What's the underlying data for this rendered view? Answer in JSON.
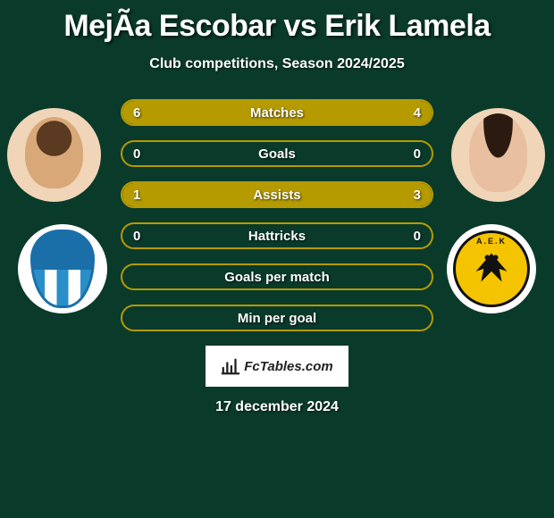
{
  "title": "MejÃ­a Escobar vs Erik Lamela",
  "subtitle": "Club competitions, Season 2024/2025",
  "date": "17 december 2024",
  "source_label": "FcTables.com",
  "colors": {
    "background": "#0a3a2a",
    "bar_border": "#b59a00",
    "bar_fill": "#b59a00",
    "text": "#ffffff"
  },
  "players": {
    "p1": {
      "name": "MejÃ­a Escobar"
    },
    "p2": {
      "name": "Erik Lamela"
    }
  },
  "stats": [
    {
      "label": "Matches",
      "p1": "6",
      "p2": "4",
      "p1_pct": 60,
      "p2_pct": 40,
      "show_values": true
    },
    {
      "label": "Goals",
      "p1": "0",
      "p2": "0",
      "p1_pct": 0,
      "p2_pct": 0,
      "show_values": true
    },
    {
      "label": "Assists",
      "p1": "1",
      "p2": "3",
      "p1_pct": 25,
      "p2_pct": 75,
      "show_values": true
    },
    {
      "label": "Hattricks",
      "p1": "0",
      "p2": "0",
      "p1_pct": 0,
      "p2_pct": 0,
      "show_values": true
    },
    {
      "label": "Goals per match",
      "p1": "",
      "p2": "",
      "p1_pct": 0,
      "p2_pct": 0,
      "show_values": false
    },
    {
      "label": "Min per goal",
      "p1": "",
      "p2": "",
      "p1_pct": 0,
      "p2_pct": 0,
      "show_values": false
    }
  ],
  "club2_text": "A.E.K"
}
